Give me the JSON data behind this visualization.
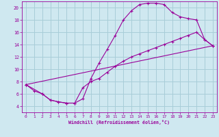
{
  "title": "",
  "xlabel": "Windchill (Refroidissement éolien,°C)",
  "bg_color": "#cfe8f0",
  "line_color": "#990099",
  "grid_color": "#a8cdd8",
  "xlim": [
    -0.5,
    23.5
  ],
  "ylim": [
    3.0,
    21.0
  ],
  "yticks": [
    4,
    6,
    8,
    10,
    12,
    14,
    16,
    18,
    20
  ],
  "xticks": [
    0,
    1,
    2,
    3,
    4,
    5,
    6,
    7,
    8,
    9,
    10,
    11,
    12,
    13,
    14,
    15,
    16,
    17,
    18,
    19,
    20,
    21,
    22,
    23
  ],
  "curve1_x": [
    0,
    1,
    2,
    3,
    4,
    5,
    6,
    7,
    8,
    9,
    10,
    11,
    12,
    13,
    14,
    15,
    16,
    17,
    18,
    19,
    20,
    21,
    22,
    23
  ],
  "curve1_y": [
    7.5,
    6.5,
    6.0,
    5.0,
    4.7,
    4.5,
    4.5,
    5.2,
    8.5,
    11.0,
    13.2,
    15.5,
    18.0,
    19.5,
    20.5,
    20.7,
    20.7,
    20.5,
    19.2,
    18.5,
    18.2,
    18.0,
    14.8,
    13.8
  ],
  "curve2_x": [
    0,
    2,
    3,
    4,
    5,
    6,
    7,
    8,
    9,
    10,
    11,
    12,
    13,
    14,
    15,
    16,
    17,
    18,
    19,
    20,
    21,
    22,
    23
  ],
  "curve2_y": [
    7.5,
    6.0,
    5.0,
    4.7,
    4.5,
    4.5,
    7.0,
    8.0,
    8.5,
    9.5,
    10.5,
    11.3,
    12.0,
    12.5,
    13.0,
    13.5,
    14.0,
    14.5,
    15.0,
    15.5,
    16.0,
    14.8,
    13.8
  ],
  "curve3_x": [
    0,
    23
  ],
  "curve3_y": [
    7.5,
    13.8
  ]
}
